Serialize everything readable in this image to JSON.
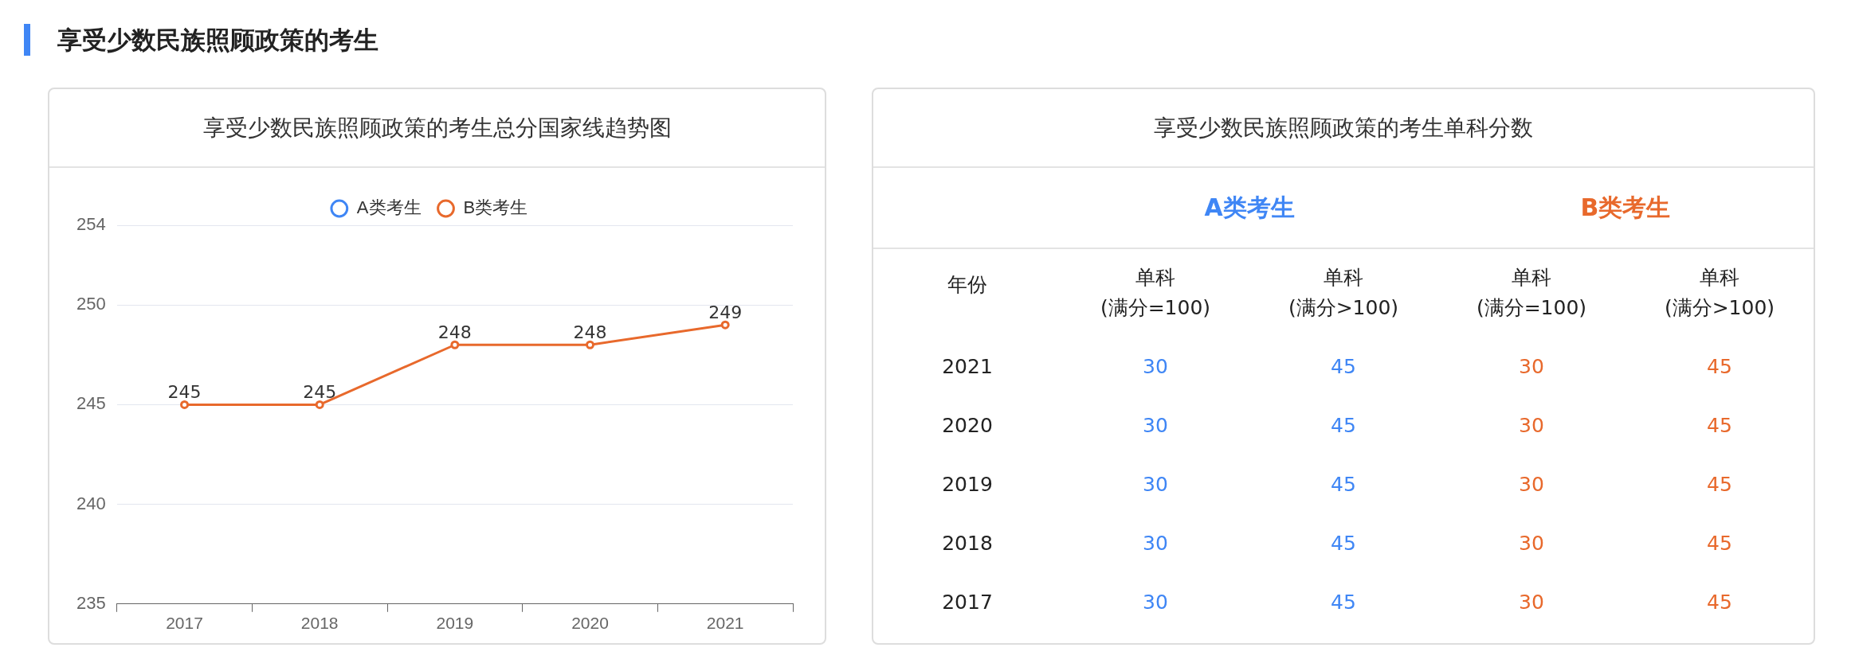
{
  "chart_data": [
    {
      "type": "line",
      "title": "享受少数民族照顾政策的考生总分国家线趋势图",
      "annotations": [
        "享受少数民族照顾政策的考生"
      ],
      "categories": [
        "2017",
        "2018",
        "2019",
        "2020",
        "2021"
      ],
      "series": [
        {
          "name": "A类考生",
          "color": "#3f86f5",
          "values": [
            null,
            null,
            null,
            null,
            null
          ]
        },
        {
          "name": "B类考生",
          "color": "#e8692c",
          "values": [
            245,
            245,
            248,
            248,
            249
          ]
        }
      ],
      "ylim": [
        235,
        254
      ],
      "yticks": [
        235,
        240,
        245,
        250,
        254
      ],
      "grid": "y",
      "legend": "top",
      "marker": "circle",
      "line_style": "solid",
      "data_labels": true
    },
    {
      "type": "heatmap",
      "title": "享受少数民族照顾政策的考生单科分数",
      "ylabel": "年份",
      "annotations": [
        "A类考生",
        "B类考生"
      ],
      "categories": [
        "单科\n(满分=100)",
        "单科\n(满分>100)",
        "单科\n(满分=100)",
        "单科\n(满分>100)"
      ],
      "y_categories": [
        "2021",
        "2020",
        "2019",
        "2018",
        "2017"
      ],
      "cells": [
        [
          30,
          45,
          30,
          45
        ],
        [
          30,
          45,
          30,
          45
        ],
        [
          30,
          45,
          30,
          45
        ],
        [
          30,
          45,
          30,
          45
        ],
        [
          30,
          45,
          30,
          45
        ]
      ],
      "colors": [
        "#3f86f5",
        "#3f86f5",
        "#e8692c",
        "#e8692c"
      ],
      "data_labels": true
    }
  ]
}
